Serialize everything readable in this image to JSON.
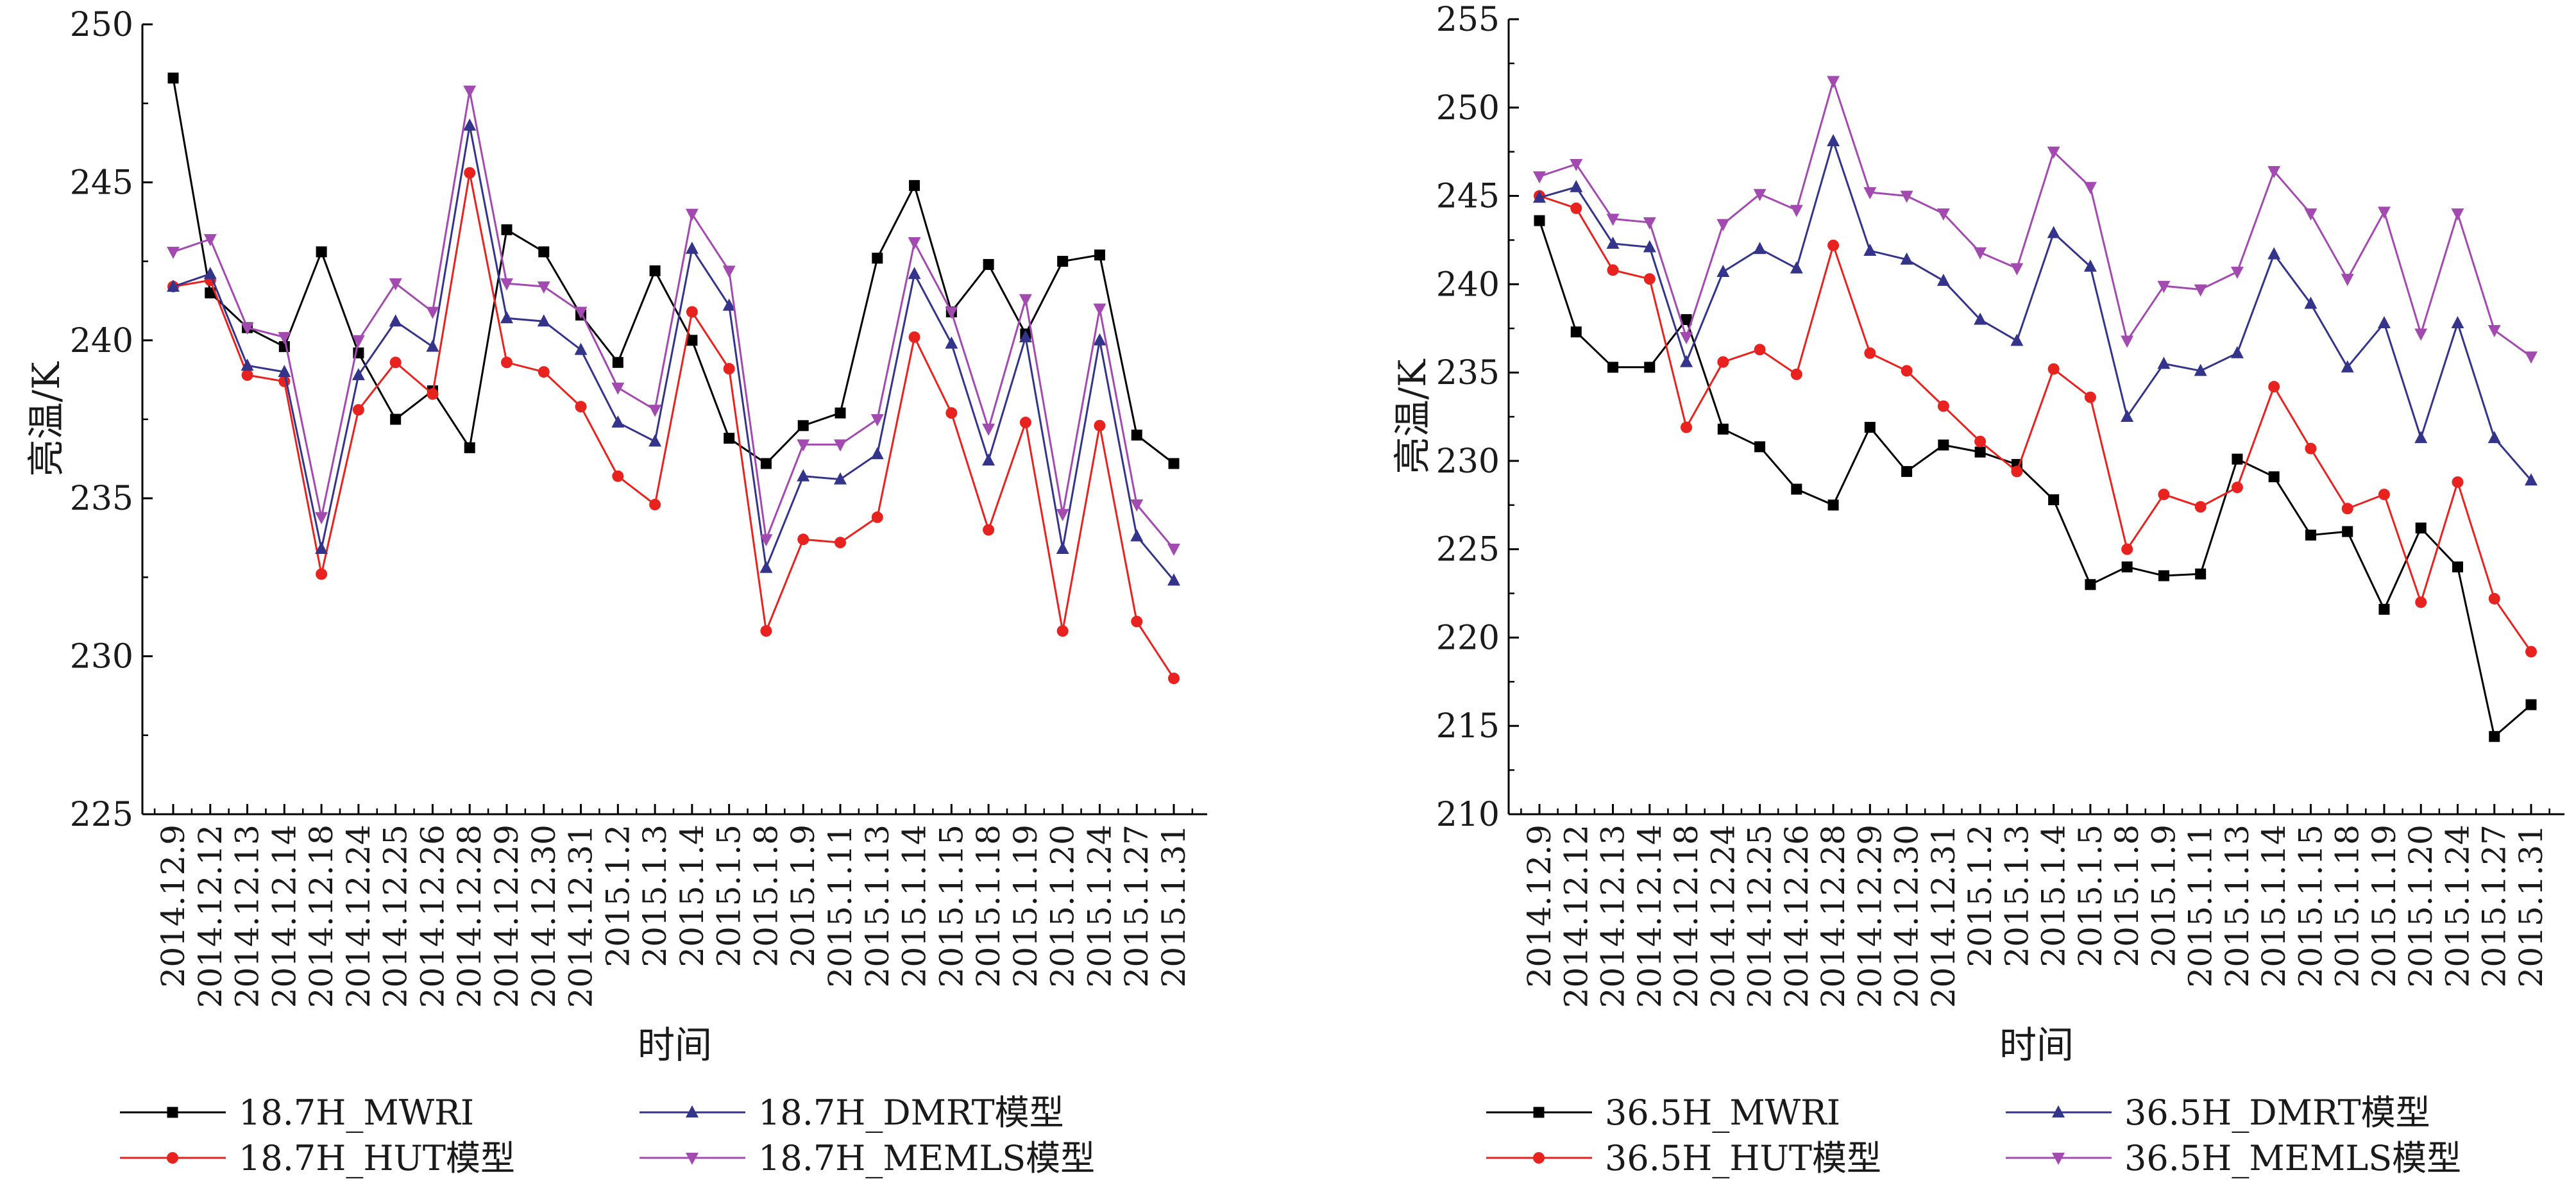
{
  "chart_data": [
    {
      "type": "line",
      "xlabel": "时间",
      "ylabel": "亮温/K",
      "ylim": [
        225,
        250
      ],
      "yticks": [
        225,
        230,
        235,
        240,
        245,
        250
      ],
      "grid": false,
      "legend_position": "bottom",
      "categories": [
        "2014.12.9",
        "2014.12.12",
        "2014.12.13",
        "2014.12.14",
        "2014.12.18",
        "2014.12.24",
        "2014.12.25",
        "2014.12.26",
        "2014.12.28",
        "2014.12.29",
        "2014.12.30",
        "2014.12.31",
        "2015.1.2",
        "2015.1.3",
        "2015.1.4",
        "2015.1.5",
        "2015.1.8",
        "2015.1.9",
        "2015.1.11",
        "2015.1.13",
        "2015.1.14",
        "2015.1.15",
        "2015.1.18",
        "2015.1.19",
        "2015.1.20",
        "2015.1.24",
        "2015.1.27",
        "2015.1.31"
      ],
      "series": [
        {
          "name": "18.7H_MWRI",
          "color": "#000000",
          "marker": "square",
          "values": [
            248.3,
            241.5,
            240.4,
            239.8,
            242.8,
            239.6,
            237.5,
            238.4,
            236.6,
            243.5,
            242.8,
            240.8,
            239.3,
            242.2,
            240.0,
            236.9,
            236.1,
            237.3,
            237.7,
            242.6,
            244.9,
            240.9,
            242.4,
            240.2,
            242.5,
            242.7,
            237.0,
            236.1
          ]
        },
        {
          "name": "18.7H_HUT模型",
          "color": "#e8231f",
          "marker": "circle",
          "values": [
            241.7,
            241.9,
            238.9,
            238.7,
            232.6,
            237.8,
            239.3,
            238.3,
            245.3,
            239.3,
            239.0,
            237.9,
            235.7,
            234.8,
            240.9,
            239.1,
            230.8,
            233.7,
            233.6,
            234.4,
            240.1,
            237.7,
            234.0,
            237.4,
            230.8,
            237.3,
            231.1,
            229.3
          ]
        },
        {
          "name": "18.7H_DMRT模型",
          "color": "#34348a",
          "marker": "triangle-up",
          "values": [
            241.7,
            242.1,
            239.2,
            239.0,
            233.4,
            238.9,
            240.6,
            239.8,
            246.8,
            240.7,
            240.6,
            239.7,
            237.4,
            236.8,
            242.9,
            241.1,
            232.8,
            235.7,
            235.6,
            236.4,
            242.1,
            239.9,
            236.2,
            240.1,
            233.4,
            240.0,
            233.8,
            232.4
          ]
        },
        {
          "name": "18.7H_MEMLS模型",
          "color": "#a24ab0",
          "marker": "triangle-down",
          "values": [
            242.8,
            243.2,
            240.4,
            240.1,
            234.4,
            240.0,
            241.8,
            240.9,
            247.9,
            241.8,
            241.7,
            240.9,
            238.5,
            237.8,
            244.0,
            242.2,
            233.7,
            236.7,
            236.7,
            237.5,
            243.1,
            240.9,
            237.2,
            241.3,
            234.5,
            241.0,
            234.8,
            233.4
          ]
        }
      ]
    },
    {
      "type": "line",
      "xlabel": "时间",
      "ylabel": "亮温/K",
      "ylim": [
        210,
        255
      ],
      "yticks": [
        210,
        215,
        220,
        225,
        230,
        235,
        240,
        245,
        250,
        255
      ],
      "grid": false,
      "legend_position": "bottom",
      "categories": [
        "2014.12.9",
        "2014.12.12",
        "2014.12.13",
        "2014.12.14",
        "2014.12.18",
        "2014.12.24",
        "2014.12.25",
        "2014.12.26",
        "2014.12.28",
        "2014.12.29",
        "2014.12.30",
        "2014.12.31",
        "2015.1.2",
        "2015.1.3",
        "2015.1.4",
        "2015.1.5",
        "2015.1.8",
        "2015.1.9",
        "2015.1.11",
        "2015.1.13",
        "2015.1.14",
        "2015.1.15",
        "2015.1.18",
        "2015.1.19",
        "2015.1.20",
        "2015.1.24",
        "2015.1.27",
        "2015.1.31"
      ],
      "series": [
        {
          "name": "36.5H_MWRI",
          "color": "#000000",
          "marker": "square",
          "values": [
            243.6,
            237.3,
            235.3,
            235.3,
            238.0,
            231.8,
            230.8,
            228.4,
            227.5,
            231.9,
            229.4,
            230.9,
            230.5,
            229.8,
            227.8,
            223.0,
            224.0,
            223.5,
            223.6,
            230.1,
            229.1,
            225.8,
            226.0,
            221.6,
            226.2,
            224.0,
            214.4,
            216.2
          ]
        },
        {
          "name": "36.5H_HUT模型",
          "color": "#e8231f",
          "marker": "circle",
          "values": [
            245.0,
            244.3,
            240.8,
            240.3,
            231.9,
            235.6,
            236.3,
            234.9,
            242.2,
            236.1,
            235.1,
            233.1,
            231.1,
            229.4,
            235.2,
            233.6,
            225.0,
            228.1,
            227.4,
            228.5,
            234.2,
            230.7,
            227.3,
            228.1,
            222.0,
            228.8,
            222.2,
            219.2
          ]
        },
        {
          "name": "36.5H_DMRT模型",
          "color": "#34348a",
          "marker": "triangle-up",
          "values": [
            244.9,
            245.5,
            242.3,
            242.1,
            235.6,
            240.7,
            242.0,
            240.9,
            248.1,
            241.9,
            241.4,
            240.2,
            238.0,
            236.8,
            242.9,
            241.0,
            232.5,
            235.5,
            235.1,
            236.1,
            241.7,
            238.9,
            235.3,
            237.8,
            231.3,
            237.8,
            231.3,
            228.9
          ]
        },
        {
          "name": "36.5H_MEMLS模型",
          "color": "#a24ab0",
          "marker": "triangle-down",
          "values": [
            246.1,
            246.8,
            243.7,
            243.5,
            237.0,
            243.4,
            245.1,
            244.2,
            251.5,
            245.2,
            245.0,
            244.0,
            241.8,
            240.9,
            247.5,
            245.5,
            236.8,
            239.9,
            239.7,
            240.7,
            246.4,
            244.0,
            240.3,
            244.1,
            237.2,
            244.0,
            237.4,
            235.9
          ]
        }
      ]
    }
  ]
}
